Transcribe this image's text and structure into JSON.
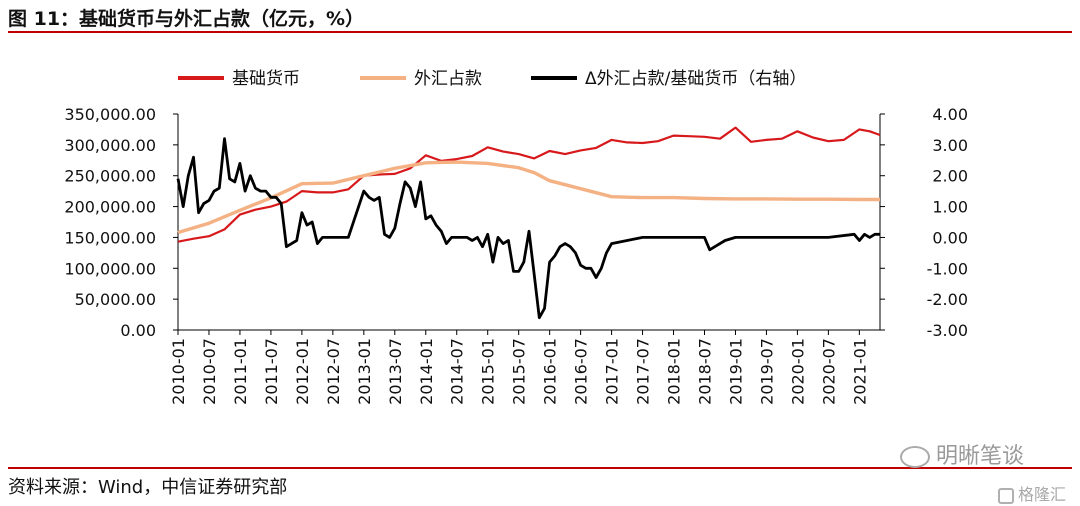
{
  "header": {
    "title": "图 11：基础货币与外汇占款（亿元，%）"
  },
  "footer": {
    "source": "资料来源：Wind，中信证券研究部"
  },
  "watermarks": {
    "primary": "明晰笔谈",
    "secondary": "格隆汇"
  },
  "colors": {
    "base_money": "#d7191c",
    "fx": "#f4b183",
    "ratio": "#000000",
    "rule": "#c00000"
  },
  "chart_data": {
    "type": "line",
    "legend_position": "top",
    "grid": false,
    "y_left": {
      "ylim": [
        0,
        350000
      ],
      "ticks": [
        0,
        50000,
        100000,
        150000,
        200000,
        250000,
        300000,
        350000
      ],
      "tick_labels": [
        "0.00",
        "50,000.00",
        "100,000.00",
        "150,000.00",
        "200,000.00",
        "250,000.00",
        "300,000.00",
        "350,000.00"
      ]
    },
    "y_right": {
      "ylim": [
        -3,
        4
      ],
      "ticks": [
        -3,
        -2,
        -1,
        0,
        1,
        2,
        3,
        4
      ],
      "tick_labels": [
        "-3.00",
        "-2.00",
        "-1.00",
        "0.00",
        "1.00",
        "2.00",
        "3.00",
        "4.00"
      ]
    },
    "x_ticks": [
      "2010-01",
      "2010-07",
      "2011-01",
      "2011-07",
      "2012-01",
      "2012-07",
      "2013-01",
      "2013-07",
      "2014-01",
      "2014-07",
      "2015-01",
      "2015-07",
      "2016-01",
      "2016-07",
      "2017-01",
      "2017-07",
      "2018-01",
      "2018-07",
      "2019-01",
      "2019-07",
      "2020-01",
      "2020-07",
      "2021-01"
    ],
    "x_range": [
      "2010-01",
      "2021-05"
    ],
    "series": [
      {
        "name": "基础货币",
        "axis": "left",
        "points": [
          [
            "2010-01",
            143000
          ],
          [
            "2010-04",
            148000
          ],
          [
            "2010-07",
            152000
          ],
          [
            "2010-10",
            163000
          ],
          [
            "2011-01",
            187000
          ],
          [
            "2011-04",
            195000
          ],
          [
            "2011-07",
            200000
          ],
          [
            "2011-10",
            208000
          ],
          [
            "2012-01",
            225000
          ],
          [
            "2012-04",
            223000
          ],
          [
            "2012-07",
            223000
          ],
          [
            "2012-10",
            228000
          ],
          [
            "2013-01",
            250000
          ],
          [
            "2013-04",
            252000
          ],
          [
            "2013-07",
            253000
          ],
          [
            "2013-10",
            262000
          ],
          [
            "2014-01",
            283000
          ],
          [
            "2014-04",
            274000
          ],
          [
            "2014-07",
            277000
          ],
          [
            "2014-10",
            282000
          ],
          [
            "2015-01",
            296000
          ],
          [
            "2015-04",
            289000
          ],
          [
            "2015-07",
            285000
          ],
          [
            "2015-10",
            278000
          ],
          [
            "2016-01",
            290000
          ],
          [
            "2016-04",
            285000
          ],
          [
            "2016-07",
            291000
          ],
          [
            "2016-10",
            295000
          ],
          [
            "2017-01",
            308000
          ],
          [
            "2017-04",
            304000
          ],
          [
            "2017-07",
            303000
          ],
          [
            "2017-10",
            306000
          ],
          [
            "2018-01",
            315000
          ],
          [
            "2018-04",
            314000
          ],
          [
            "2018-07",
            313000
          ],
          [
            "2018-10",
            310000
          ],
          [
            "2019-01",
            328000
          ],
          [
            "2019-04",
            305000
          ],
          [
            "2019-07",
            308000
          ],
          [
            "2019-10",
            310000
          ],
          [
            "2020-01",
            322000
          ],
          [
            "2020-04",
            312000
          ],
          [
            "2020-07",
            306000
          ],
          [
            "2020-10",
            308000
          ],
          [
            "2021-01",
            325000
          ],
          [
            "2021-03",
            322000
          ],
          [
            "2021-05",
            316000
          ]
        ]
      },
      {
        "name": "外汇占款",
        "axis": "left",
        "points": [
          [
            "2010-01",
            158000
          ],
          [
            "2010-07",
            173000
          ],
          [
            "2011-01",
            194000
          ],
          [
            "2011-07",
            214000
          ],
          [
            "2012-01",
            237000
          ],
          [
            "2012-07",
            238000
          ],
          [
            "2013-01",
            250000
          ],
          [
            "2013-07",
            262000
          ],
          [
            "2014-01",
            271000
          ],
          [
            "2014-07",
            272000
          ],
          [
            "2015-01",
            270000
          ],
          [
            "2015-07",
            263000
          ],
          [
            "2015-10",
            255000
          ],
          [
            "2016-01",
            242000
          ],
          [
            "2016-07",
            229000
          ],
          [
            "2017-01",
            216000
          ],
          [
            "2017-07",
            214500
          ],
          [
            "2018-01",
            214500
          ],
          [
            "2018-07",
            213000
          ],
          [
            "2019-01",
            212500
          ],
          [
            "2019-07",
            212500
          ],
          [
            "2020-01",
            212000
          ],
          [
            "2020-07",
            212000
          ],
          [
            "2021-01",
            211500
          ],
          [
            "2021-05",
            211500
          ]
        ]
      },
      {
        "name": "Δ外汇占款/基础货币（右轴）",
        "axis": "right",
        "points": [
          [
            "2010-01",
            1.9
          ],
          [
            "2010-02",
            1.0
          ],
          [
            "2010-03",
            2.0
          ],
          [
            "2010-04",
            2.6
          ],
          [
            "2010-05",
            0.8
          ],
          [
            "2010-06",
            1.1
          ],
          [
            "2010-07",
            1.2
          ],
          [
            "2010-08",
            1.5
          ],
          [
            "2010-09",
            1.6
          ],
          [
            "2010-10",
            3.2
          ],
          [
            "2010-11",
            1.9
          ],
          [
            "2010-12",
            1.8
          ],
          [
            "2011-01",
            2.4
          ],
          [
            "2011-02",
            1.5
          ],
          [
            "2011-03",
            2.0
          ],
          [
            "2011-04",
            1.6
          ],
          [
            "2011-05",
            1.5
          ],
          [
            "2011-06",
            1.5
          ],
          [
            "2011-07",
            1.3
          ],
          [
            "2011-08",
            1.3
          ],
          [
            "2011-09",
            1.1
          ],
          [
            "2011-10",
            -0.3
          ],
          [
            "2011-11",
            -0.2
          ],
          [
            "2011-12",
            -0.1
          ],
          [
            "2012-01",
            0.8
          ],
          [
            "2012-02",
            0.4
          ],
          [
            "2012-03",
            0.5
          ],
          [
            "2012-04",
            -0.2
          ],
          [
            "2012-05",
            0.0
          ],
          [
            "2012-07",
            0.0
          ],
          [
            "2012-10",
            0.0
          ],
          [
            "2013-01",
            1.5
          ],
          [
            "2013-02",
            1.3
          ],
          [
            "2013-03",
            1.2
          ],
          [
            "2013-04",
            1.3
          ],
          [
            "2013-05",
            0.1
          ],
          [
            "2013-06",
            0.0
          ],
          [
            "2013-07",
            0.3
          ],
          [
            "2013-08",
            1.1
          ],
          [
            "2013-09",
            1.8
          ],
          [
            "2013-10",
            1.6
          ],
          [
            "2013-11",
            1.0
          ],
          [
            "2013-12",
            1.8
          ],
          [
            "2014-01",
            0.6
          ],
          [
            "2014-02",
            0.7
          ],
          [
            "2014-03",
            0.4
          ],
          [
            "2014-04",
            0.2
          ],
          [
            "2014-05",
            -0.2
          ],
          [
            "2014-06",
            0.0
          ],
          [
            "2014-09",
            0.0
          ],
          [
            "2014-10",
            -0.1
          ],
          [
            "2014-11",
            0.0
          ],
          [
            "2014-12",
            -0.3
          ],
          [
            "2015-01",
            0.1
          ],
          [
            "2015-02",
            -0.8
          ],
          [
            "2015-03",
            0.0
          ],
          [
            "2015-04",
            -0.2
          ],
          [
            "2015-05",
            -0.1
          ],
          [
            "2015-06",
            -1.1
          ],
          [
            "2015-07",
            -1.1
          ],
          [
            "2015-08",
            -0.8
          ],
          [
            "2015-09",
            0.2
          ],
          [
            "2015-10",
            -1.2
          ],
          [
            "2015-11",
            -2.6
          ],
          [
            "2015-12",
            -2.3
          ],
          [
            "2016-01",
            -0.8
          ],
          [
            "2016-02",
            -0.6
          ],
          [
            "2016-03",
            -0.3
          ],
          [
            "2016-04",
            -0.2
          ],
          [
            "2016-05",
            -0.3
          ],
          [
            "2016-06",
            -0.5
          ],
          [
            "2016-07",
            -0.9
          ],
          [
            "2016-08",
            -1.0
          ],
          [
            "2016-09",
            -1.0
          ],
          [
            "2016-10",
            -1.3
          ],
          [
            "2016-11",
            -1.0
          ],
          [
            "2016-12",
            -0.5
          ],
          [
            "2017-01",
            -0.2
          ],
          [
            "2017-04",
            -0.1
          ],
          [
            "2017-07",
            0.0
          ],
          [
            "2018-01",
            0.0
          ],
          [
            "2018-07",
            0.0
          ],
          [
            "2018-08",
            -0.4
          ],
          [
            "2018-09",
            -0.3
          ],
          [
            "2018-11",
            -0.1
          ],
          [
            "2019-01",
            0.0
          ],
          [
            "2019-07",
            0.0
          ],
          [
            "2020-01",
            0.0
          ],
          [
            "2020-07",
            0.0
          ],
          [
            "2020-12",
            0.1
          ],
          [
            "2021-01",
            -0.1
          ],
          [
            "2021-02",
            0.1
          ],
          [
            "2021-03",
            0.0
          ],
          [
            "2021-04",
            0.1
          ],
          [
            "2021-05",
            0.1
          ]
        ]
      }
    ]
  }
}
